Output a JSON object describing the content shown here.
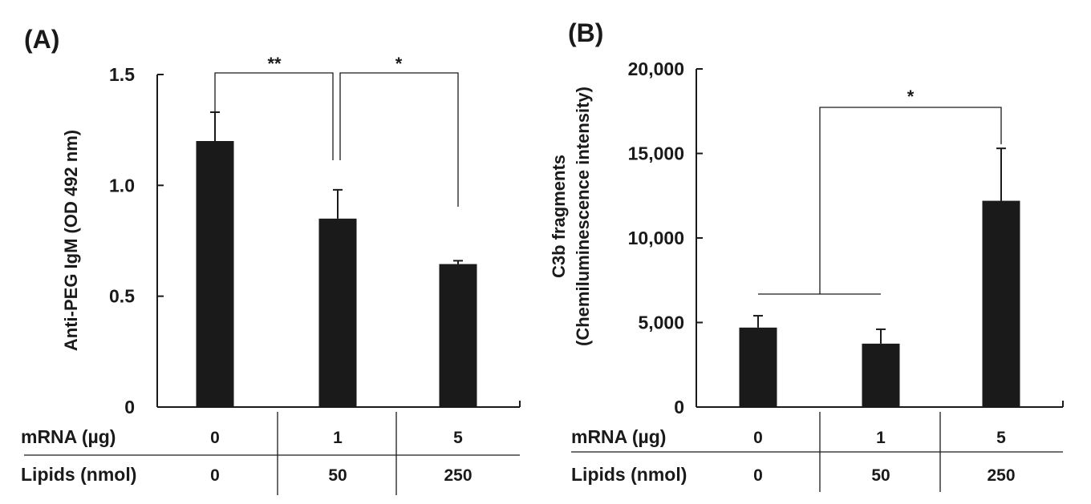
{
  "chart_data": [
    {
      "type": "bar",
      "panel_label": "(A)",
      "ylabel": "Anti-PEG IgM (OD 492 nm)",
      "ylim": [
        0,
        1.5
      ],
      "yticks": [
        {
          "value": 0,
          "label": "0"
        },
        {
          "value": 0.5,
          "label": "0.5"
        },
        {
          "value": 1.0,
          "label": "1.0"
        },
        {
          "value": 1.5,
          "label": "1.5"
        }
      ],
      "values": [
        1.2,
        0.85,
        0.645
      ],
      "errors": [
        0.13,
        0.13,
        0.015
      ],
      "table": {
        "row_labels": [
          "mRNA (µg)",
          "Lipids (nmol)"
        ],
        "rows": [
          [
            "0",
            "1",
            "5"
          ],
          [
            "0",
            "50",
            "250"
          ]
        ]
      },
      "significance": [
        {
          "groups": [
            0,
            1
          ],
          "label": "**"
        },
        {
          "groups": [
            1,
            2
          ],
          "label": "*"
        }
      ]
    },
    {
      "type": "bar",
      "panel_label": "(B)",
      "ylabel": [
        "C3b fragments",
        "(Chemiluminescence intensity)"
      ],
      "ylim": [
        0,
        20000
      ],
      "yticks": [
        {
          "value": 0,
          "label": "0"
        },
        {
          "value": 5000,
          "label": "5,000"
        },
        {
          "value": 10000,
          "label": "10,000"
        },
        {
          "value": 15000,
          "label": "15,000"
        },
        {
          "value": 20000,
          "label": "20,000"
        }
      ],
      "values": [
        4700,
        3750,
        12200
      ],
      "errors": [
        700,
        850,
        3100
      ],
      "table": {
        "row_labels": [
          "mRNA (µg)",
          "Lipids (nmol)"
        ],
        "rows": [
          [
            "0",
            "1",
            "5"
          ],
          [
            "0",
            "50",
            "250"
          ]
        ]
      },
      "significance": [
        {
          "groups": [
            [
              0,
              1
            ],
            2
          ],
          "label": "*"
        }
      ]
    }
  ]
}
